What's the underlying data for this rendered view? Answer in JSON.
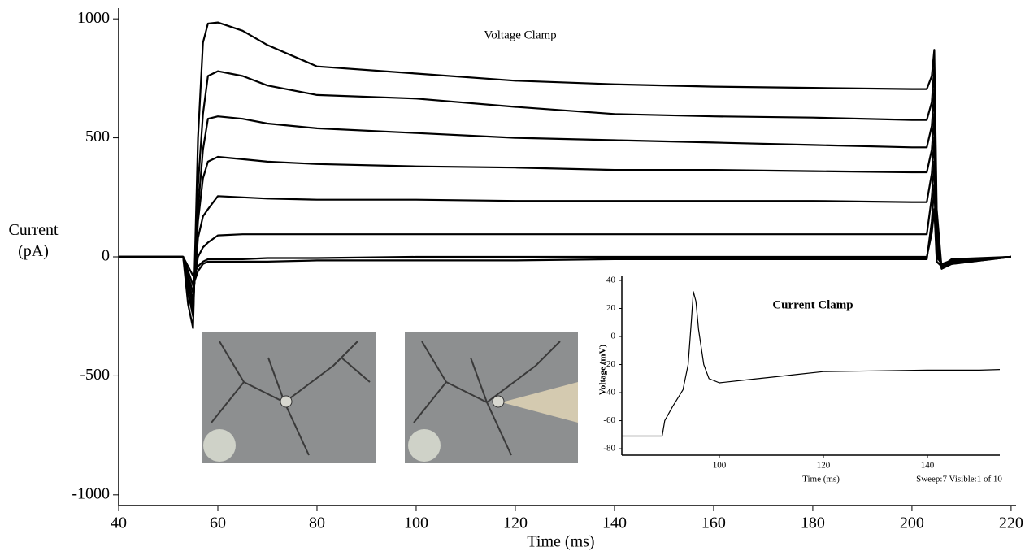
{
  "chart_data": [
    {
      "type": "line",
      "title": "Voltage Clamp",
      "xlabel": "Time (ms)",
      "ylabel": "Current (pA)",
      "xlim": [
        40,
        221
      ],
      "ylim": [
        -1045,
        1045
      ],
      "xticks": [
        40,
        60,
        80,
        100,
        120,
        140,
        160,
        180,
        200,
        220
      ],
      "yticks": [
        1000,
        500,
        0,
        -500,
        -1000
      ],
      "x": [
        40,
        53,
        54,
        55,
        56,
        57,
        58,
        60,
        65,
        70,
        80,
        100,
        120,
        140,
        160,
        180,
        200,
        203,
        204,
        204.5,
        205,
        206,
        208,
        220
      ],
      "series": [
        {
          "color": "#000000",
          "values": [
            0,
            0,
            -200,
            -300,
            500,
            900,
            980,
            985,
            950,
            890,
            800,
            770,
            740,
            725,
            715,
            710,
            705,
            705,
            760,
            870,
            200,
            -50,
            -30,
            0
          ]
        },
        {
          "color": "#000000",
          "values": [
            0,
            0,
            -150,
            -250,
            300,
            600,
            760,
            780,
            760,
            720,
            680,
            665,
            630,
            600,
            590,
            585,
            575,
            575,
            650,
            800,
            150,
            -50,
            -30,
            0
          ]
        },
        {
          "color": "#000000",
          "values": [
            0,
            0,
            -150,
            -220,
            200,
            450,
            580,
            590,
            580,
            560,
            540,
            520,
            500,
            490,
            480,
            470,
            460,
            460,
            550,
            700,
            100,
            -50,
            -25,
            0
          ]
        },
        {
          "color": "#000000",
          "values": [
            0,
            0,
            -120,
            -200,
            150,
            330,
            400,
            420,
            410,
            400,
            390,
            380,
            375,
            365,
            365,
            360,
            355,
            355,
            450,
            600,
            50,
            -40,
            -20,
            0
          ]
        },
        {
          "color": "#000000",
          "values": [
            0,
            0,
            -100,
            -180,
            80,
            170,
            200,
            255,
            250,
            245,
            240,
            240,
            235,
            235,
            235,
            235,
            230,
            230,
            350,
            500,
            20,
            -40,
            -20,
            0
          ]
        },
        {
          "color": "#000000",
          "values": [
            0,
            0,
            -80,
            -150,
            0,
            40,
            60,
            90,
            95,
            95,
            95,
            95,
            95,
            95,
            95,
            95,
            95,
            95,
            250,
            400,
            0,
            -30,
            -15,
            0
          ]
        },
        {
          "color": "#000000",
          "values": [
            0,
            0,
            -60,
            -120,
            -60,
            -30,
            -20,
            -20,
            -20,
            -20,
            -15,
            -15,
            -15,
            -10,
            -10,
            -10,
            -10,
            -10,
            150,
            300,
            -20,
            -40,
            -15,
            0
          ]
        },
        {
          "color": "#000000",
          "values": [
            0,
            0,
            -40,
            -80,
            -40,
            -20,
            -10,
            -10,
            -10,
            -5,
            -5,
            0,
            0,
            0,
            0,
            0,
            0,
            0,
            100,
            200,
            -20,
            -40,
            -10,
            0
          ]
        }
      ]
    },
    {
      "type": "line",
      "title": "Current Clamp",
      "xlabel": "Time (ms)",
      "ylabel": "Voltage (mV)",
      "annotation": "Sweep:7 Visible:1 of 10",
      "xlim": [
        81.25,
        153.9
      ],
      "ylim": [
        -84.6,
        42.9
      ],
      "xticks": [
        100,
        120,
        140
      ],
      "yticks": [
        40,
        20,
        0,
        -20,
        -40,
        -60,
        -80
      ],
      "x": [
        81.25,
        89,
        89.5,
        91,
        93,
        94,
        94.6,
        95,
        95.5,
        96,
        97,
        98,
        100,
        105,
        110,
        115,
        120,
        130,
        140,
        150,
        153.9
      ],
      "series": [
        {
          "color": "#000000",
          "values": [
            -71,
            -71,
            -60,
            -50,
            -38,
            -20,
            10,
            32,
            25,
            5,
            -20,
            -30,
            -33,
            -31,
            -29,
            -27,
            -25,
            -24.5,
            -24,
            -24,
            -23.5
          ]
        }
      ]
    }
  ]
}
